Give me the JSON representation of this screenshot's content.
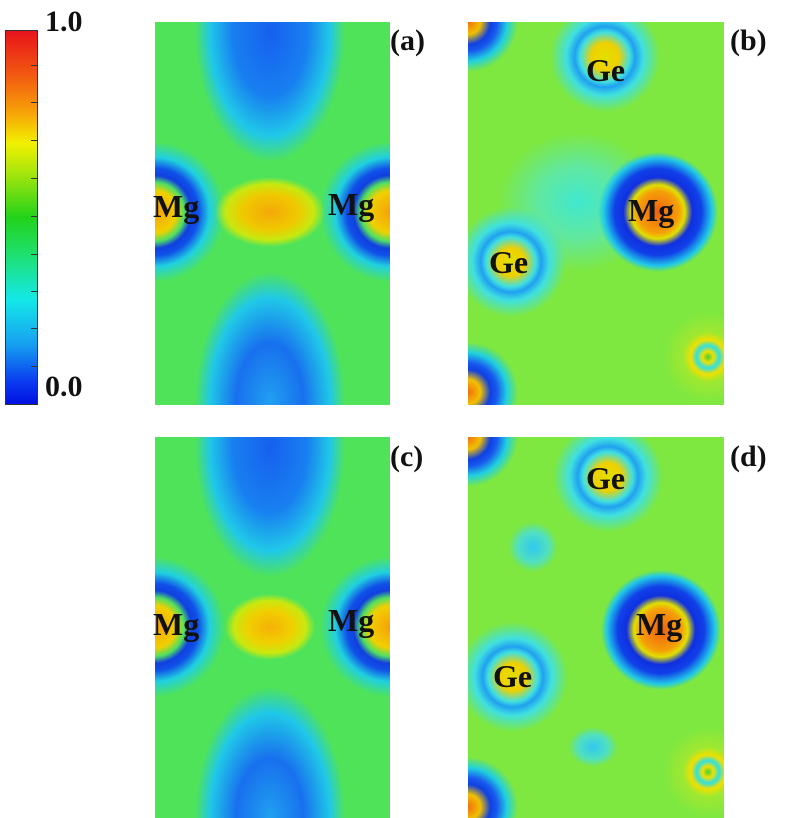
{
  "chart_data": {
    "type": "heatmap",
    "title": "",
    "colorbar": {
      "min": 0.0,
      "max": 1.0,
      "tick_labels": [
        "1.0",
        "0.0"
      ],
      "colors": [
        "#e8141c",
        "#f7a408",
        "#f2f000",
        "#22d21a",
        "#14e8e8",
        "#0a3cf0",
        "#0010e0"
      ]
    },
    "panels": [
      {
        "label": "(a)",
        "atoms": [
          "Mg",
          "Mg"
        ]
      },
      {
        "label": "(b)",
        "atoms": [
          "Ge",
          "Mg",
          "Ge"
        ]
      },
      {
        "label": "(c)",
        "atoms": [
          "Mg",
          "Mg"
        ]
      },
      {
        "label": "(d)",
        "atoms": [
          "Ge",
          "Mg",
          "Ge"
        ]
      }
    ]
  }
}
